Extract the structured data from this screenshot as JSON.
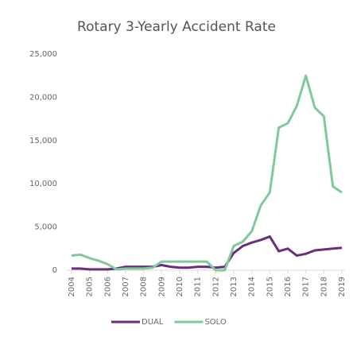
{
  "chart_data": {
    "type": "line",
    "title": "Rotary 3-Yearly Accident Rate",
    "x": [
      2004,
      2004.5,
      2005,
      2005.5,
      2006,
      2006.5,
      2007,
      2007.5,
      2008,
      2008.5,
      2009,
      2009.5,
      2010,
      2010.5,
      2011,
      2011.5,
      2012,
      2012.5,
      2013,
      2013.5,
      2014,
      2014.5,
      2015,
      2015.5,
      2016,
      2016.5,
      2017,
      2017.5,
      2018,
      2018.5,
      2019
    ],
    "series": [
      {
        "name": "DUAL",
        "color": "#6b2d7e",
        "values": [
          200,
          200,
          100,
          100,
          100,
          200,
          400,
          400,
          400,
          400,
          600,
          400,
          300,
          300,
          400,
          400,
          300,
          400,
          2000,
          2800,
          3200,
          3500,
          3900,
          2200,
          2500,
          1700,
          1900,
          2300,
          2400,
          2500,
          2600
        ]
      },
      {
        "name": "SOLO",
        "color": "#7fc99a",
        "values": [
          1700,
          1800,
          1400,
          1100,
          700,
          100,
          200,
          200,
          200,
          300,
          1000,
          1000,
          1000,
          1000,
          1000,
          1000,
          0,
          0,
          2800,
          3300,
          4500,
          7500,
          9000,
          16500,
          17000,
          19000,
          22500,
          18800,
          17800,
          9700,
          9000
        ]
      }
    ],
    "xlim": [
      2004,
      2019
    ],
    "xticks": [
      2004,
      2005,
      2006,
      2007,
      2008,
      2009,
      2010,
      2011,
      2012,
      2013,
      2014,
      2015,
      2016,
      2017,
      2018,
      2019
    ],
    "ylim": [
      0,
      25000
    ],
    "yticks": [
      0,
      {
        "value": 5000,
        "label": "5,000"
      },
      {
        "value": 10000,
        "label": "10,000"
      },
      {
        "value": 15000,
        "label": "15,000"
      },
      {
        "value": 20000,
        "label": "20,000"
      },
      {
        "value": 25000,
        "label": "25,000"
      }
    ],
    "legend": "bottom"
  }
}
